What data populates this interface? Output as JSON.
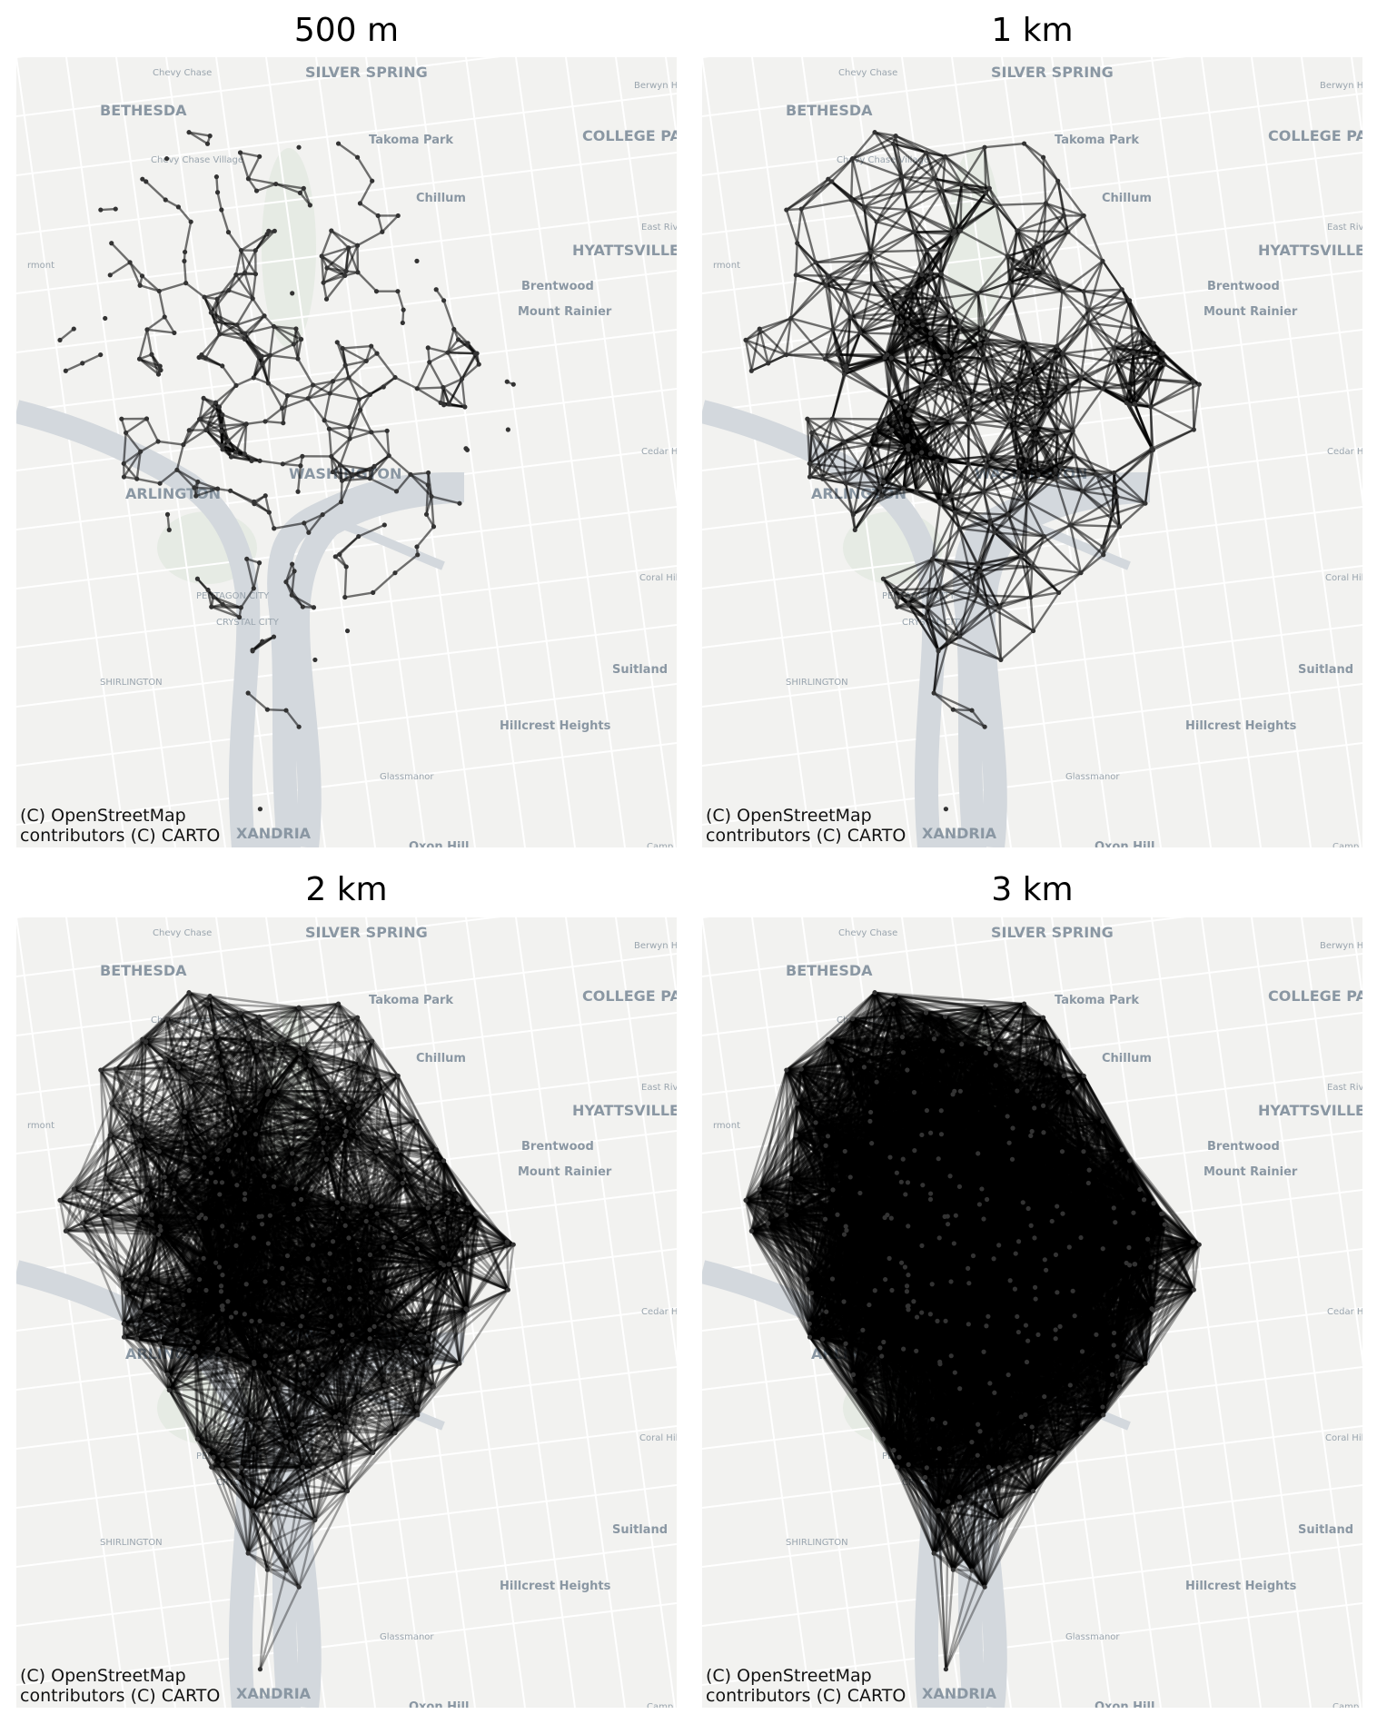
{
  "panels": [
    {
      "title": "500 m",
      "attribution": "(C) OpenStreetMap\ncontributors (C) CARTO",
      "density": 0
    },
    {
      "title": "1 km",
      "attribution": "(C) OpenStreetMap\ncontributors (C) CARTO",
      "density": 1
    },
    {
      "title": "2 km",
      "attribution": "(C) OpenStreetMap\ncontributors (C) CARTO",
      "density": 2
    },
    {
      "title": "3 km",
      "attribution": "(C) OpenStreetMap\ncontributors (C) CARTO",
      "density": 3
    }
  ],
  "basemap_labels": [
    {
      "text": "Chevy Chase",
      "size": "small"
    },
    {
      "text": "SILVER SPRING",
      "size": "big"
    },
    {
      "text": "Berwyn Hei",
      "size": "small"
    },
    {
      "text": "BETHESDA",
      "size": "big"
    },
    {
      "text": "Takoma Park",
      "size": "mid"
    },
    {
      "text": "COLLEGE PARK",
      "size": "big"
    },
    {
      "text": "Chevy Chase Village",
      "size": "small"
    },
    {
      "text": "Chillum",
      "size": "mid"
    },
    {
      "text": "East Rive",
      "size": "small"
    },
    {
      "text": "HYATTSVILLE",
      "size": "big"
    },
    {
      "text": "rmont",
      "size": "small"
    },
    {
      "text": "Brentwood",
      "size": "mid"
    },
    {
      "text": "Mount Rainier",
      "size": "mid"
    },
    {
      "text": "WASHINGTON",
      "size": "big"
    },
    {
      "text": "ARLINGTON",
      "size": "big"
    },
    {
      "text": "Cedar Hei",
      "size": "small"
    },
    {
      "text": "Coral Hills",
      "size": "small"
    },
    {
      "text": "PENTAGON CITY",
      "size": "small"
    },
    {
      "text": "CRYSTAL CITY",
      "size": "small"
    },
    {
      "text": "Suitland",
      "size": "mid"
    },
    {
      "text": "SHIRLINGTON",
      "size": "small"
    },
    {
      "text": "Hillcrest Heights",
      "size": "mid"
    },
    {
      "text": "Glassmanor",
      "size": "small"
    },
    {
      "text": "XANDRIA",
      "size": "big"
    },
    {
      "text": "Oxon Hill",
      "size": "mid"
    },
    {
      "text": "Camp Spr",
      "size": "small"
    }
  ],
  "colors": {
    "water": "#d3d8dd",
    "land": "#f2f2f0",
    "park": "#e6ebe4",
    "road": "#ffffff",
    "edge": "#000000",
    "label": "#8a97a3"
  }
}
